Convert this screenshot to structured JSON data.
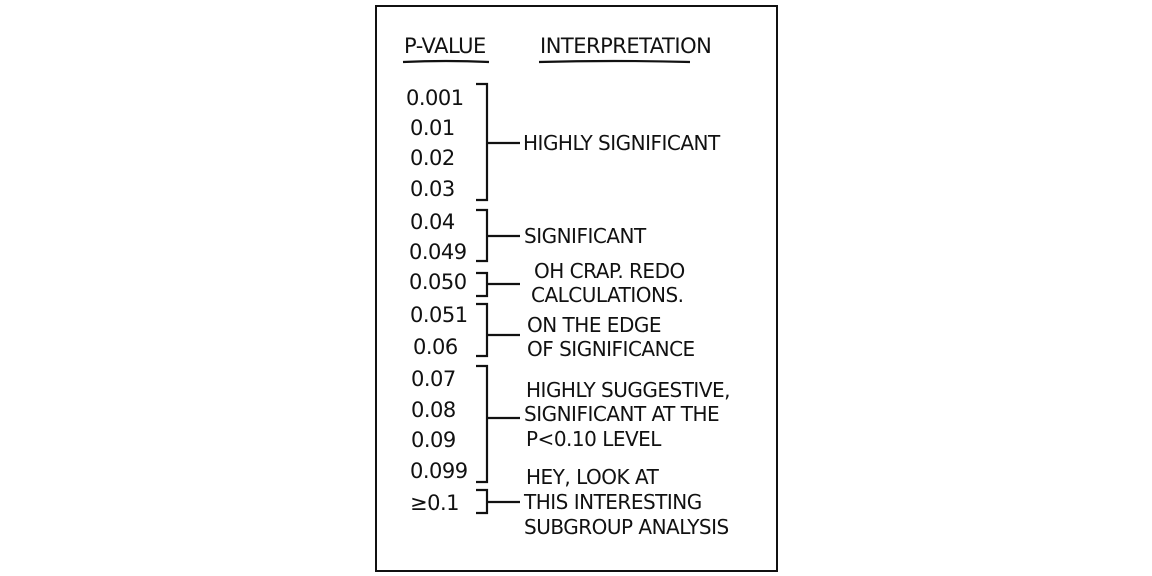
{
  "headers": {
    "p_value": "P-VALUE",
    "interpretation": "INTERPRETATION"
  },
  "p_values": [
    "0.001",
    "0.01",
    "0.02",
    "0.03",
    "0.04",
    "0.049",
    "0.050",
    "0.051",
    "0.06",
    "0.07",
    "0.08",
    "0.09",
    "0.099",
    "≥0.1"
  ],
  "groups": [
    {
      "lines": [
        "HIGHLY SIGNIFICANT"
      ]
    },
    {
      "lines": [
        "SIGNIFICANT"
      ]
    },
    {
      "lines": [
        "OH CRAP. REDO",
        "CALCULATIONS."
      ]
    },
    {
      "lines": [
        "ON THE EDGE",
        "OF SIGNIFICANCE"
      ]
    },
    {
      "lines": [
        "HIGHLY SUGGESTIVE,",
        "SIGNIFICANT AT THE",
        "P<0.10 LEVEL"
      ]
    },
    {
      "lines": [
        "HEY, LOOK AT",
        "THIS INTERESTING",
        "SUBGROUP ANALYSIS"
      ]
    }
  ],
  "colors": {
    "ink": "#111111",
    "background": "#ffffff"
  }
}
